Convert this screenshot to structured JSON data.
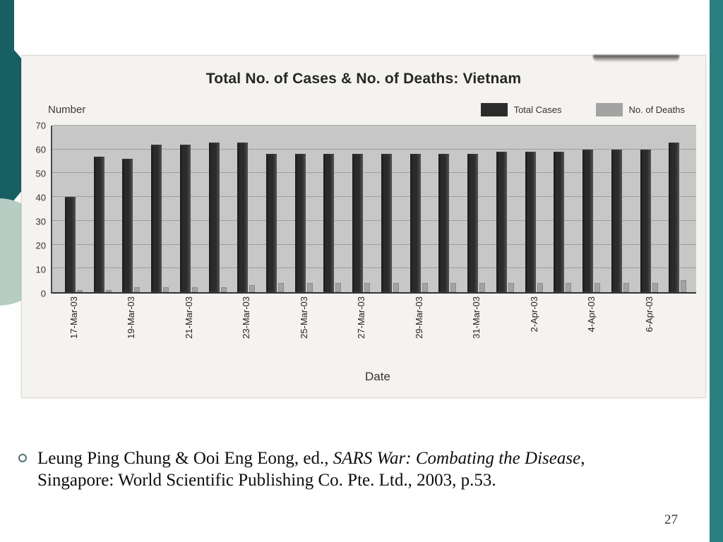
{
  "theme": {
    "teal_dark": "#175f62",
    "teal_medium": "#2a8080",
    "sage_light": "#b6cdc4"
  },
  "slide": {
    "page_number": "27",
    "bullet_icon": "circle-outline-bullet"
  },
  "citation": {
    "line1_pre": "Leung Ping Chung & Ooi Eng Eong, ed., ",
    "line1_italic": "SARS War: Combating the Disease",
    "line1_end": ", ",
    "line2": "Singapore: World Scientific Publishing Co. Pte. Ltd., 2003, p.53."
  },
  "chart_data": {
    "type": "bar",
    "title": "Total No. of Cases & No. of Deaths: Vietnam",
    "ylabel": "Number",
    "xlabel": "Date",
    "ylim": [
      0,
      70
    ],
    "yticks": [
      70,
      60,
      50,
      40,
      30,
      20,
      10,
      0
    ],
    "grid": true,
    "legend_position": "top-right",
    "categories": [
      "17-Mar-03",
      "18-Mar-03",
      "19-Mar-03",
      "20-Mar-03",
      "21-Mar-03",
      "22-Mar-03",
      "23-Mar-03",
      "24-Mar-03",
      "25-Mar-03",
      "26-Mar-03",
      "27-Mar-03",
      "28-Mar-03",
      "29-Mar-03",
      "30-Mar-03",
      "31-Mar-03",
      "1-Apr-03",
      "2-Apr-03",
      "3-Apr-03",
      "4-Apr-03",
      "5-Apr-03",
      "6-Apr-03",
      "7-Apr-03"
    ],
    "x_tick_labels": [
      "17-Mar-03",
      "19-Mar-03",
      "21-Mar-03",
      "23-Mar-03",
      "25-Mar-03",
      "27-Mar-03",
      "29-Mar-03",
      "31-Mar-03",
      "2-Apr-03",
      "4-Apr-03",
      "6-Apr-03"
    ],
    "series": [
      {
        "name": "Total Cases",
        "color": "#2b2b2b",
        "values": [
          40,
          57,
          56,
          62,
          62,
          63,
          63,
          58,
          58,
          58,
          58,
          58,
          58,
          58,
          58,
          59,
          59,
          59,
          60,
          60,
          60,
          63
        ]
      },
      {
        "name": "No. of Deaths",
        "color": "#a3a3a3",
        "values": [
          1,
          1,
          2,
          2,
          2,
          2,
          3,
          4,
          4,
          4,
          4,
          4,
          4,
          4,
          4,
          4,
          4,
          4,
          4,
          4,
          4,
          5
        ]
      }
    ]
  }
}
